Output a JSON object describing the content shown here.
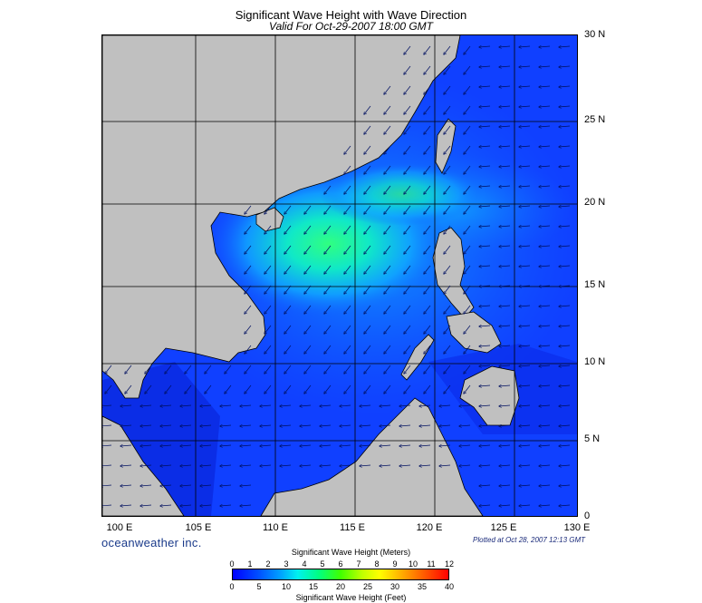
{
  "title": "Significant Wave Height with Wave Direction",
  "subtitle": "Valid For Oct-29-2007 18:00 GMT",
  "brand": "oceanweather inc.",
  "plotted_note": "Plotted at Oct 28, 2007 12:13 GMT",
  "map": {
    "lon_range": [
      99,
      130
    ],
    "lat_range": [
      0,
      30
    ],
    "lat_labels": [
      "30 N",
      "25 N",
      "20 N",
      "15 N",
      "10 N",
      "5 N",
      "0"
    ],
    "lon_labels": [
      "100 E",
      "105 E",
      "110 E",
      "115 E",
      "120 E",
      "125 E",
      "130 E"
    ],
    "land_color": "#c0c0c0",
    "sea_base_color": "#1040ff"
  },
  "colorbar": {
    "meters_title": "Significant Wave Height (Meters)",
    "feet_title": "Significant Wave Height (Feet)",
    "meters_ticks": [
      "0",
      "1",
      "2",
      "3",
      "4",
      "5",
      "6",
      "7",
      "8",
      "9",
      "10",
      "11",
      "12"
    ],
    "feet_ticks": [
      "0",
      "5",
      "10",
      "15",
      "20",
      "25",
      "30",
      "35",
      "40"
    ],
    "colors": [
      "#0000ff",
      "#0050ff",
      "#00a0ff",
      "#00f0f0",
      "#00ff80",
      "#40ff00",
      "#c0ff00",
      "#ffff00",
      "#ffb000",
      "#ff6000",
      "#ff0000"
    ]
  }
}
